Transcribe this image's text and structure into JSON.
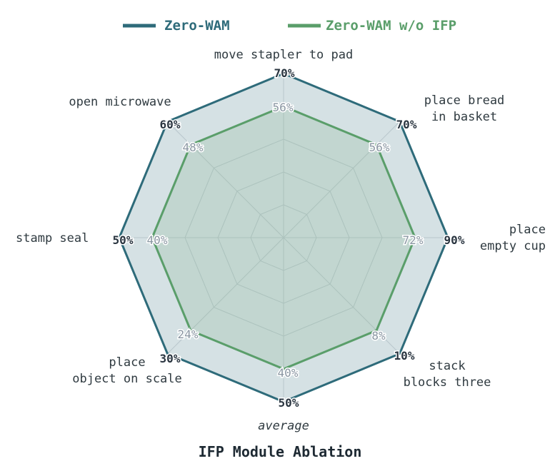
{
  "chart_data": {
    "type": "radar",
    "title": "IFP Module Ablation",
    "value_suffix": "%",
    "rmax": 70,
    "grid_levels": 5,
    "legend_position": "top",
    "axes": [
      {
        "label": [
          "move stapler to pad"
        ],
        "italic": false
      },
      {
        "label": [
          "place bread",
          "in basket"
        ],
        "italic": false
      },
      {
        "label": [
          "place",
          "empty cup"
        ],
        "italic": false
      },
      {
        "label": [
          "stack",
          "blocks three"
        ],
        "italic": false
      },
      {
        "label": [
          "average"
        ],
        "italic": true
      },
      {
        "label": [
          "place",
          "object on scale"
        ],
        "italic": false
      },
      {
        "label": [
          "stamp seal"
        ],
        "italic": false
      },
      {
        "label": [
          "open microwave"
        ],
        "italic": false
      }
    ],
    "axis_max": [
      70,
      70,
      90,
      10,
      50,
      30,
      50,
      60
    ],
    "series": [
      {
        "name": "Zero-WAM",
        "color": "#2e6b7a",
        "fill": "#2e6b7a",
        "values": [
          70,
          70,
          90,
          10,
          50,
          30,
          50,
          60
        ]
      },
      {
        "name": "Zero-WAM w/o IFP",
        "color": "#5a9e6a",
        "fill": "#7fb38a",
        "values": [
          56,
          56,
          72,
          8,
          40,
          24,
          40,
          48
        ]
      }
    ]
  }
}
